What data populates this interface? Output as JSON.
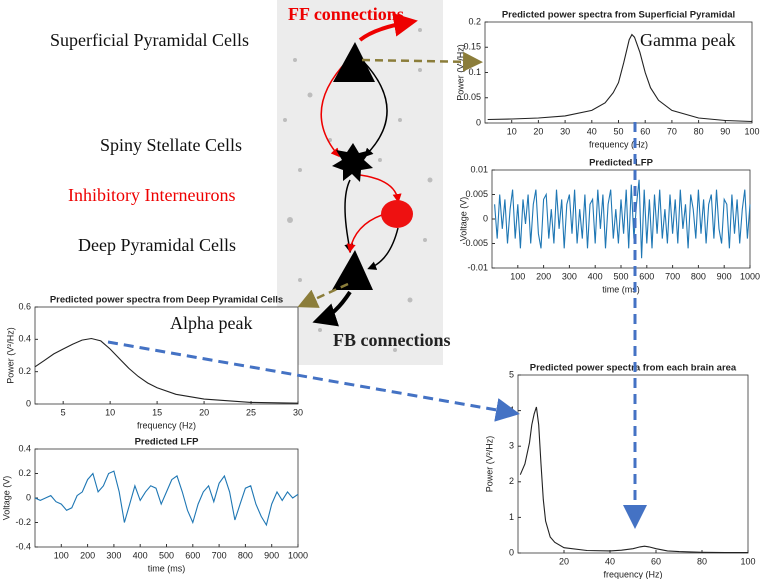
{
  "chart_data": [
    {
      "type": "line",
      "title": "Predicted power spectra from  Superficial Pyramidal",
      "xlabel": "frequency  (Hz)",
      "ylabel": "Power (V²/Hz)",
      "annotation": "Gamma peak",
      "x": [
        1,
        10,
        20,
        30,
        40,
        45,
        48,
        50,
        52,
        54,
        55,
        56,
        58,
        60,
        62,
        65,
        70,
        80,
        90,
        100
      ],
      "values": [
        0.007,
        0.008,
        0.01,
        0.014,
        0.025,
        0.04,
        0.06,
        0.08,
        0.12,
        0.165,
        0.175,
        0.17,
        0.14,
        0.1,
        0.07,
        0.045,
        0.025,
        0.01,
        0.005,
        0.003
      ],
      "color": "#222222",
      "xlim": [
        0,
        100
      ],
      "ylim": [
        0,
        0.2
      ],
      "xticks": [
        10,
        20,
        30,
        40,
        50,
        60,
        70,
        80,
        90,
        100
      ],
      "yticks": [
        0,
        0.05,
        0.1,
        0.15,
        0.2
      ]
    },
    {
      "type": "line",
      "title": "Predicted LFP",
      "xlabel": "time (ms)",
      "ylabel": "Voltage (V)",
      "x": [
        10,
        20,
        30,
        40,
        50,
        60,
        70,
        80,
        90,
        100,
        110,
        120,
        130,
        140,
        150,
        160,
        170,
        180,
        190,
        200,
        210,
        220,
        230,
        240,
        250,
        260,
        270,
        280,
        290,
        300,
        310,
        320,
        330,
        340,
        350,
        360,
        370,
        380,
        390,
        400,
        410,
        420,
        430,
        440,
        450,
        460,
        470,
        480,
        490,
        500,
        510,
        520,
        530,
        540,
        550,
        560,
        570,
        580,
        590,
        600,
        610,
        620,
        630,
        640,
        650,
        660,
        670,
        680,
        690,
        700,
        710,
        720,
        730,
        740,
        750,
        760,
        770,
        780,
        790,
        800,
        810,
        820,
        830,
        840,
        850,
        860,
        870,
        880,
        890,
        900,
        910,
        920,
        930,
        940,
        950,
        960,
        970,
        980,
        990,
        1000
      ],
      "values": [
        0.003,
        -0.004,
        0.005,
        -0.002,
        0.004,
        -0.005,
        0.002,
        0.006,
        -0.004,
        0.003,
        -0.006,
        0.004,
        -0.001,
        0.005,
        -0.005,
        0.003,
        0.006,
        -0.003,
        -0.006,
        0.004,
        0.005,
        -0.004,
        0.002,
        -0.005,
        0.006,
        -0.002,
        0.004,
        -0.006,
        0.003,
        0.005,
        -0.003,
        0.006,
        -0.005,
        0.002,
        -0.004,
        0.005,
        -0.006,
        0.003,
        0.004,
        -0.005,
        0.006,
        -0.002,
        0.005,
        -0.006,
        0.003,
        0.006,
        -0.004,
        0.002,
        -0.005,
        0.004,
        -0.003,
        0.006,
        -0.006,
        0.007,
        -0.004,
        0.003,
        0.008,
        -0.008,
        0.006,
        -0.005,
        0.004,
        -0.006,
        0.005,
        -0.003,
        0.006,
        -0.004,
        0.002,
        -0.005,
        0.005,
        -0.003,
        0.004,
        -0.005,
        0.006,
        -0.002,
        0.003,
        -0.006,
        0.005,
        0.002,
        -0.004,
        0.006,
        -0.003,
        0.004,
        -0.005,
        0.003,
        0.005,
        -0.004,
        0.006,
        -0.002,
        -0.005,
        0.004,
        0.003,
        -0.006,
        0.005,
        -0.003,
        0.004,
        -0.005,
        0.002,
        0.006,
        -0.004,
        0.003
      ],
      "color": "#1f77b4",
      "xlim": [
        0,
        1000
      ],
      "ylim": [
        -0.01,
        0.01
      ],
      "xticks": [
        100,
        200,
        300,
        400,
        500,
        600,
        700,
        800,
        900,
        1000
      ],
      "yticks": [
        -0.01,
        -0.005,
        0,
        0.005,
        0.01
      ]
    },
    {
      "type": "line",
      "title": "Predicted power spectra from Deep Pyramidal Cells",
      "xlabel": "frequency (Hz)",
      "ylabel": "Power (V²/Hz)",
      "annotation": "Alpha peak",
      "x": [
        2,
        3,
        4,
        5,
        6,
        7,
        8,
        9,
        10,
        11,
        12,
        13,
        14,
        15,
        17,
        20,
        25,
        30
      ],
      "values": [
        0.23,
        0.27,
        0.31,
        0.34,
        0.37,
        0.395,
        0.405,
        0.39,
        0.34,
        0.28,
        0.22,
        0.17,
        0.13,
        0.1,
        0.06,
        0.03,
        0.01,
        0.005
      ],
      "color": "#222222",
      "xlim": [
        2,
        30
      ],
      "ylim": [
        0,
        0.6
      ],
      "xticks": [
        5,
        10,
        15,
        20,
        25,
        30
      ],
      "yticks": [
        0,
        0.2,
        0.4,
        0.6
      ]
    },
    {
      "type": "line",
      "title": "Predicted LFP",
      "xlabel": "time (ms)",
      "ylabel": "Voltage (V)",
      "x": [
        0,
        20,
        40,
        60,
        80,
        100,
        120,
        140,
        160,
        180,
        200,
        220,
        240,
        260,
        280,
        300,
        320,
        340,
        360,
        380,
        400,
        420,
        440,
        460,
        480,
        500,
        520,
        540,
        560,
        580,
        600,
        620,
        640,
        660,
        680,
        700,
        720,
        740,
        760,
        780,
        800,
        820,
        840,
        860,
        880,
        900,
        920,
        940,
        960,
        980,
        1000
      ],
      "values": [
        0,
        -0.02,
        0,
        0.02,
        -0.03,
        -0.05,
        -0.1,
        -0.08,
        0.02,
        0.05,
        0.15,
        0.2,
        0.05,
        0.1,
        0.2,
        0.22,
        0.05,
        -0.2,
        -0.05,
        0.1,
        -0.02,
        0.05,
        0.1,
        0.08,
        -0.05,
        0.05,
        0.15,
        0.18,
        0.05,
        -0.1,
        -0.2,
        -0.05,
        0.05,
        0.1,
        -0.03,
        0.12,
        0.18,
        0.05,
        -0.18,
        -0.05,
        0.08,
        0.1,
        -0.05,
        -0.15,
        -0.22,
        -0.05,
        0.05,
        -0.02,
        0.05,
        0,
        0.03
      ],
      "color": "#1f77b4",
      "xlim": [
        0,
        1000
      ],
      "ylim": [
        -0.4,
        0.4
      ],
      "xticks": [
        100,
        200,
        300,
        400,
        500,
        600,
        700,
        800,
        900,
        1000
      ],
      "yticks": [
        -0.4,
        -0.2,
        0,
        0.2,
        0.4
      ]
    },
    {
      "type": "line",
      "title": "Predicted power spectra from each brain area",
      "xlabel": "frequency (Hz)",
      "ylabel": "Power (V²/Hz)",
      "x": [
        1,
        3,
        5,
        6,
        7,
        8,
        9,
        10,
        11,
        12,
        14,
        16,
        20,
        30,
        40,
        45,
        50,
        53,
        55,
        57,
        60,
        65,
        70,
        80,
        90,
        100
      ],
      "values": [
        2.2,
        2.5,
        3.1,
        3.6,
        3.9,
        4.1,
        3.6,
        2.5,
        1.5,
        0.9,
        0.45,
        0.3,
        0.15,
        0.07,
        0.06,
        0.08,
        0.12,
        0.17,
        0.19,
        0.17,
        0.12,
        0.06,
        0.04,
        0.02,
        0.01,
        0.01
      ],
      "color": "#222222",
      "xlim": [
        0,
        100
      ],
      "ylim": [
        0,
        5
      ],
      "xticks": [
        20,
        40,
        60,
        80,
        100
      ],
      "yticks": [
        0,
        1,
        2,
        3,
        4,
        5
      ]
    }
  ],
  "diagram": {
    "ff": "FF connections",
    "fb": "FB connections",
    "superficial": "Superficial Pyramidal Cells",
    "stellate": "Spiny Stellate Cells",
    "inhibitory": "Inhibitory Interneurons",
    "deep": "Deep Pyramidal Cells"
  }
}
